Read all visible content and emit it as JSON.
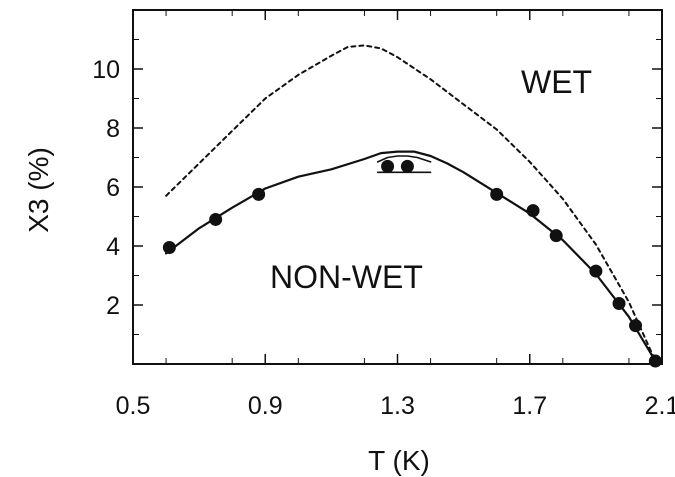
{
  "chart_data": {
    "type": "scatter",
    "title": "",
    "xlabel": "T (K)",
    "ylabel": "X3 (%)",
    "xlim": [
      0.5,
      2.1
    ],
    "ylim": [
      0,
      12
    ],
    "x_ticks": [
      "0.5",
      "0.9",
      "1.3",
      "1.7",
      "2.1"
    ],
    "x_tick_values": [
      0.5,
      0.9,
      1.3,
      1.7,
      2.1
    ],
    "y_ticks": [
      "2",
      "4",
      "6",
      "8",
      "10"
    ],
    "y_tick_values": [
      2,
      4,
      6,
      8,
      10
    ],
    "grid": false,
    "region_labels": {
      "upper": "WET",
      "lower": "NON-WET"
    },
    "series": [
      {
        "style": "markers",
        "x": [
          0.61,
          0.75,
          0.88,
          1.27,
          1.33,
          1.6,
          1.71,
          1.78,
          1.9,
          1.97,
          2.02,
          2.08
        ],
        "y": [
          3.95,
          4.9,
          5.75,
          6.7,
          6.7,
          5.75,
          5.2,
          4.35,
          3.15,
          2.05,
          1.3,
          0.1
        ]
      },
      {
        "style": "solid",
        "x": [
          0.6,
          0.7,
          0.8,
          0.9,
          1.0,
          1.1,
          1.2,
          1.25,
          1.3,
          1.35,
          1.4,
          1.45,
          1.5,
          1.6,
          1.7,
          1.8,
          1.9,
          2.0,
          2.08
        ],
        "y": [
          3.75,
          4.6,
          5.3,
          5.95,
          6.35,
          6.6,
          6.95,
          7.15,
          7.2,
          7.2,
          7.05,
          6.8,
          6.5,
          5.8,
          5.1,
          4.2,
          3.05,
          1.6,
          0.1
        ]
      },
      {
        "style": "dashed",
        "x": [
          0.6,
          0.7,
          0.8,
          0.9,
          1.0,
          1.1,
          1.15,
          1.2,
          1.25,
          1.3,
          1.4,
          1.5,
          1.6,
          1.7,
          1.8,
          1.9,
          2.0,
          2.08
        ],
        "y": [
          5.7,
          6.8,
          7.9,
          9.0,
          9.8,
          10.45,
          10.75,
          10.8,
          10.7,
          10.4,
          9.65,
          8.8,
          7.95,
          6.85,
          5.6,
          4.05,
          2.1,
          0.1
        ]
      },
      {
        "style": "solid-thin",
        "x": [
          1.24,
          1.27,
          1.3,
          1.33,
          1.36,
          1.4
        ],
        "y": [
          6.85,
          7.0,
          7.05,
          7.05,
          7.0,
          6.85
        ]
      },
      {
        "style": "solid-thin",
        "x": [
          1.24,
          1.4
        ],
        "y": [
          6.5,
          6.5
        ]
      }
    ]
  }
}
